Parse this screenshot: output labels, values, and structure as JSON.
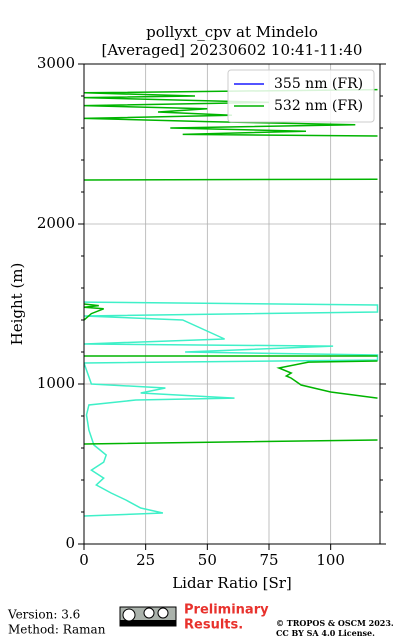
{
  "chart_data": {
    "type": "profile",
    "title": [
      "pollyxt_cpv at Mindelo",
      "[Averaged] 20230602 10:41-11:40"
    ],
    "xlabel": "Lidar Ratio [Sr]",
    "ylabel": "Height (m)",
    "xlim": [
      0,
      120
    ],
    "xticks": [
      0,
      25,
      50,
      75,
      100
    ],
    "ylim": [
      0,
      3000
    ],
    "yticks": [
      0,
      1000,
      2000,
      3000
    ],
    "yminorticks": [
      200,
      400,
      600,
      800,
      1200,
      1400,
      1600,
      1800,
      2200,
      2400,
      2600,
      2800
    ],
    "grid": true,
    "legend": "upper right",
    "series": [
      {
        "name": "355 nm (FR)",
        "color": "#1a1aff",
        "values": [],
        "heights": []
      },
      {
        "name": "532 nm (FR)",
        "color": "#00b400",
        "values": [
          0,
          119,
          null,
          119,
          100,
          88,
          84,
          82,
          84,
          79,
          91,
          119,
          null,
          0,
          119,
          null,
          0,
          3,
          8,
          0,
          6,
          0,
          null,
          0,
          119,
          null,
          119,
          40,
          90,
          35,
          110,
          50,
          0,
          60,
          30,
          50,
          0,
          75,
          0,
          45,
          0,
          119
        ],
        "heights": [
          625,
          650,
          null,
          912,
          950,
          994,
          1037,
          1050,
          1069,
          1100,
          1137,
          1144,
          null,
          1175,
          1175,
          null,
          1400,
          1440,
          1470,
          1480,
          1490,
          1500,
          null,
          2275,
          2280,
          null,
          2550,
          2560,
          2580,
          2600,
          2620,
          2640,
          2660,
          2680,
          2700,
          2720,
          2740,
          2760,
          2790,
          2800,
          2820,
          2840
        ]
      },
      {
        "color": "#3ff0c8",
        "values": [
          0,
          32,
          23,
          17,
          11,
          5,
          8,
          3,
          8,
          9,
          4,
          2,
          1,
          2,
          21,
          61,
          23,
          33,
          3,
          0,
          119,
          119,
          41,
          101,
          0,
          57,
          40,
          0,
          119,
          119,
          0
        ],
        "heights": [
          175,
          194,
          225,
          275,
          319,
          369,
          412,
          462,
          512,
          556,
          619,
          712,
          806,
          869,
          900,
          912,
          944,
          975,
          1000,
          1131,
          1150,
          1181,
          1200,
          1237,
          1250,
          1281,
          1400,
          1425,
          1450,
          1494,
          1512
        ]
      }
    ]
  },
  "footer": {
    "version": "Version: 3.6",
    "method": "Method: Raman",
    "preliminary": [
      "Preliminary",
      "Results."
    ],
    "license": [
      "© TROPOS & OSCM 2023.",
      "CC BY SA 4.0 License."
    ]
  }
}
